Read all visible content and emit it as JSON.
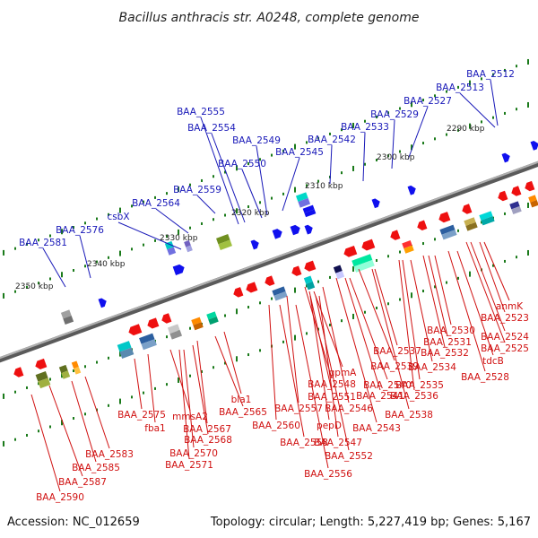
{
  "title": "Bacillus anthracis str. A0248, complete genome",
  "footer": {
    "accession": "Accession: NC_012659",
    "summary": "Topology: circular; Length: 5,227,419 bp; Genes: 5,167"
  },
  "scale_labels": [
    "2290 kbp",
    "2300 kbp",
    "2310 kbp",
    "2320 kbp",
    "2330 kbp",
    "2340 kbp",
    "2350 kbp"
  ],
  "top_genes": [
    "BAA_2512",
    "BAA_2513",
    "BAA_2527",
    "BAA_2529",
    "BAA_2533",
    "BAA_2542",
    "BAA_2545",
    "BAA_2549",
    "BAA_2550",
    "BAA_2554",
    "BAA_2555",
    "BAA_2559",
    "BAA_2564",
    "csbX",
    "BAA_2576",
    "BAA_2581"
  ],
  "bottom_genes": [
    "anmK",
    "BAA_2523",
    "BAA_2524",
    "BAA_2525",
    "tdcB",
    "BAA_2528",
    "BAA_2530",
    "BAA_2531",
    "BAA_2532",
    "BAA_2534",
    "BAA_2535",
    "BAA_2536",
    "BAA_2537",
    "BAA_2538",
    "BAA_2539",
    "BAA_2540",
    "BAA_2541",
    "BAA_2543",
    "gpmA",
    "BAA_2546",
    "BAA_2547",
    "BAA_2548",
    "BAA_2551",
    "BAA_2552",
    "pepD",
    "BAA_2556",
    "BAA_2557",
    "BAA_2558",
    "BAA_2560",
    "bla1",
    "BAA_2565",
    "BAA_2567",
    "BAA_2568",
    "BAA_2570",
    "BAA_2571",
    "mmsA2",
    "fba1",
    "BAA_2575",
    "BAA_2583",
    "BAA_2585",
    "BAA_2587",
    "BAA_2590"
  ],
  "colors": {
    "forward_strand": "#1010ee",
    "reverse_strand": "#ee1010",
    "backbone": "#888888",
    "ticks": "#1a7a1a",
    "top_label": "#1818b8",
    "bottom_label": "#d01010"
  }
}
